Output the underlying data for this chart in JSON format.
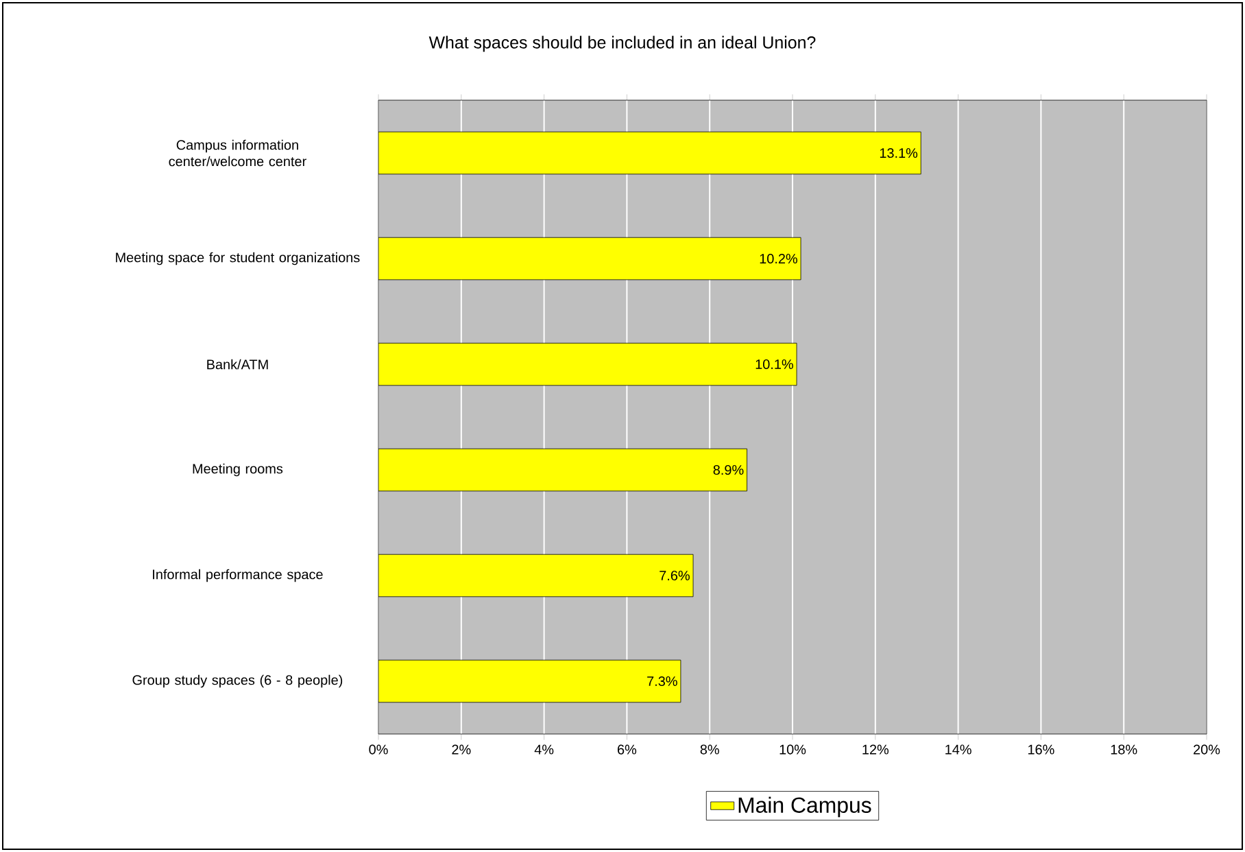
{
  "chart_data": {
    "type": "bar",
    "orientation": "horizontal",
    "title": "What spaces should be included in an ideal Union?",
    "categories": [
      "Campus information center/welcome center",
      "Meeting space for student organizations",
      "Bank/ATM",
      "Meeting rooms",
      "Informal performance space",
      "Group study spaces (6 - 8 people)"
    ],
    "series": [
      {
        "name": "Main Campus",
        "color": "#ffff00",
        "values": [
          13.1,
          10.2,
          10.1,
          8.9,
          7.6,
          7.3
        ]
      }
    ],
    "value_labels": [
      "13.1%",
      "10.2%",
      "10.1%",
      "8.9%",
      "7.6%",
      "7.3%"
    ],
    "xlim": [
      0,
      20
    ],
    "xticks": [
      {
        "value": 0,
        "label": "0%"
      },
      {
        "value": 2,
        "label": "2%"
      },
      {
        "value": 4,
        "label": "4%"
      },
      {
        "value": 6,
        "label": "6%"
      },
      {
        "value": 8,
        "label": "8%"
      },
      {
        "value": 10,
        "label": "10%"
      },
      {
        "value": 12,
        "label": "12%"
      },
      {
        "value": 14,
        "label": "14%"
      },
      {
        "value": 16,
        "label": "16%"
      },
      {
        "value": 18,
        "label": "18%"
      },
      {
        "value": 20,
        "label": "20%"
      }
    ],
    "grid": "x",
    "legend": "bottom"
  }
}
